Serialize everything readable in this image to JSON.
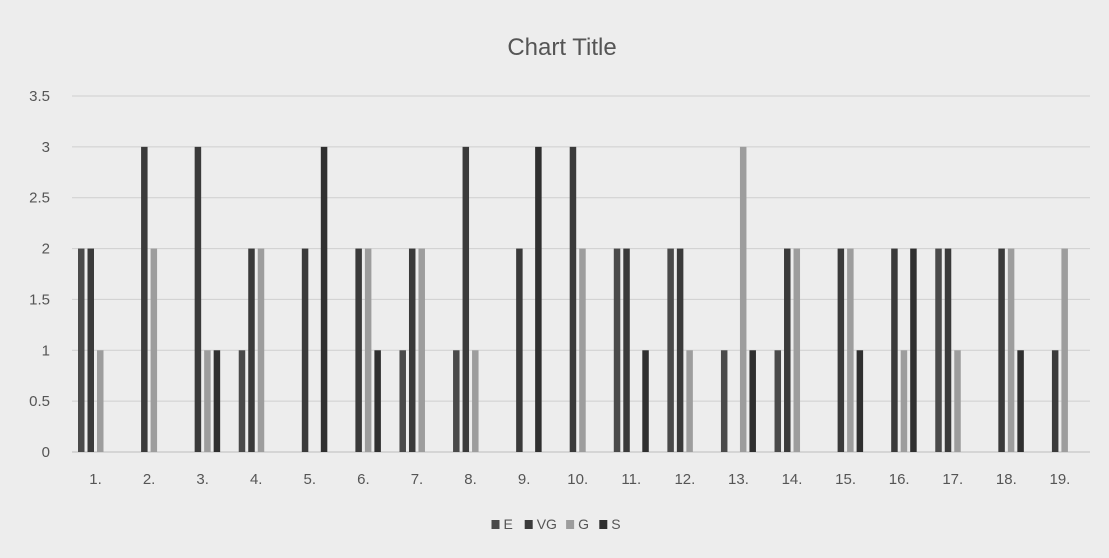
{
  "chart_data": {
    "type": "bar",
    "title": "Chart Title",
    "xlabel": "",
    "ylabel": "",
    "ylim": [
      0,
      3.5
    ],
    "yticks": [
      0,
      0.5,
      1,
      1.5,
      2,
      2.5,
      3,
      3.5
    ],
    "ytick_labels": [
      "0",
      "0.5",
      "1",
      "1.5",
      "2",
      "2.5",
      "3",
      "3.5"
    ],
    "grid": true,
    "legend_position": "bottom",
    "categories": [
      "1.",
      "2.",
      "3.",
      "4.",
      "5.",
      "6.",
      "7.",
      "8.",
      "9.",
      "10.",
      "11.",
      "12.",
      "13.",
      "14.",
      "15.",
      "16.",
      "17.",
      "18.",
      "19."
    ],
    "series": [
      {
        "name": "E",
        "color": "#4a4a4a",
        "values": [
          2,
          0,
          0,
          1,
          0,
          0,
          1,
          1,
          0,
          0,
          2,
          2,
          1,
          1,
          0,
          0,
          2,
          0,
          0
        ]
      },
      {
        "name": "VG",
        "color": "#3a3a3a",
        "values": [
          2,
          3,
          3,
          2,
          2,
          2,
          2,
          3,
          2,
          3,
          2,
          2,
          0,
          2,
          2,
          2,
          2,
          2,
          1
        ]
      },
      {
        "name": "G",
        "color": "#9d9d9d",
        "values": [
          1,
          2,
          1,
          2,
          0,
          2,
          2,
          1,
          0,
          2,
          0,
          1,
          3,
          2,
          2,
          1,
          1,
          2,
          2
        ]
      },
      {
        "name": "S",
        "color": "#2f2f2f",
        "values": [
          0,
          0,
          1,
          0,
          3,
          1,
          0,
          0,
          3,
          0,
          1,
          0,
          1,
          0,
          1,
          2,
          0,
          1,
          0
        ]
      }
    ]
  }
}
